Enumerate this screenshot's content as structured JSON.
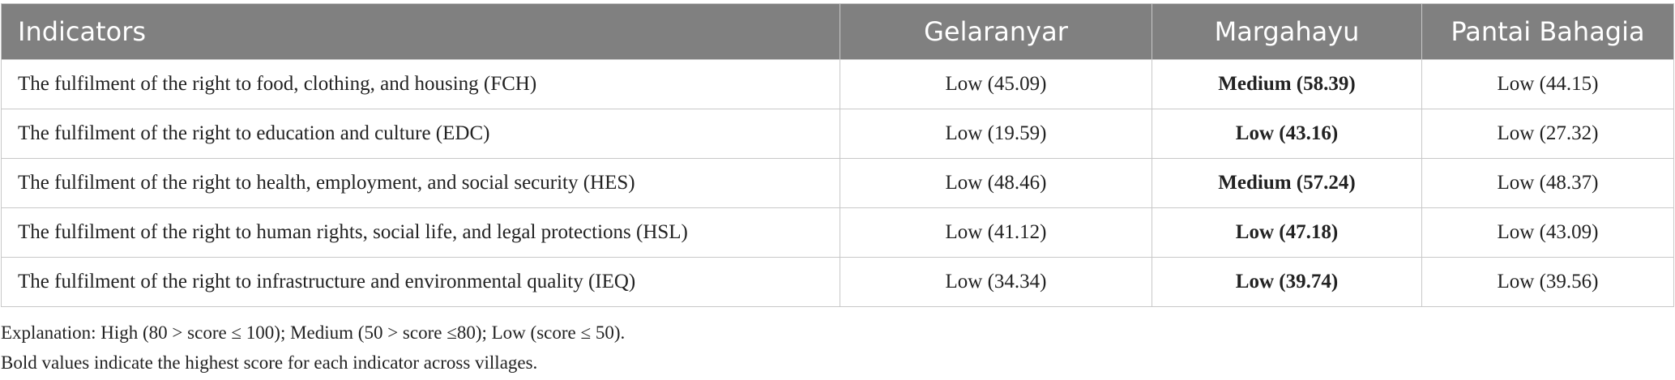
{
  "table": {
    "header": [
      "Indicators",
      "Gelaranyar",
      "Margahayu",
      "Pantai Bahagia"
    ],
    "rows": [
      [
        "The fulfilment of the right to food, clothing, and housing (FCH)",
        "Low (45.09)",
        "Medium (58.39)",
        "Low (44.15)"
      ],
      [
        "The fulfilment of the right to education and culture (EDC)",
        "Low (19.59)",
        "Low (43.16)",
        "Low (27.32)"
      ],
      [
        "The fulfilment of the right to health, employment, and social security (HES)",
        "Low (48.46)",
        "Medium (57.24)",
        "Low (48.37)"
      ],
      [
        "The fulfilment of the right to human rights, social life, and legal protections (HSL)",
        "Low (41.12)",
        "Low (47.18)",
        "Low (43.09)"
      ],
      [
        "The fulfilment of the right to infrastructure and environmental quality (IEQ)",
        "Low (34.34)",
        "Low (39.74)",
        "Low (39.56)"
      ]
    ],
    "bold_column": 2
  },
  "notes": [
    "Explanation: High (80 > score ≤ 100); Medium (50 > score ≤80); Low (score ≤ 50).",
    "Bold values indicate the highest score for each indicator across villages."
  ]
}
